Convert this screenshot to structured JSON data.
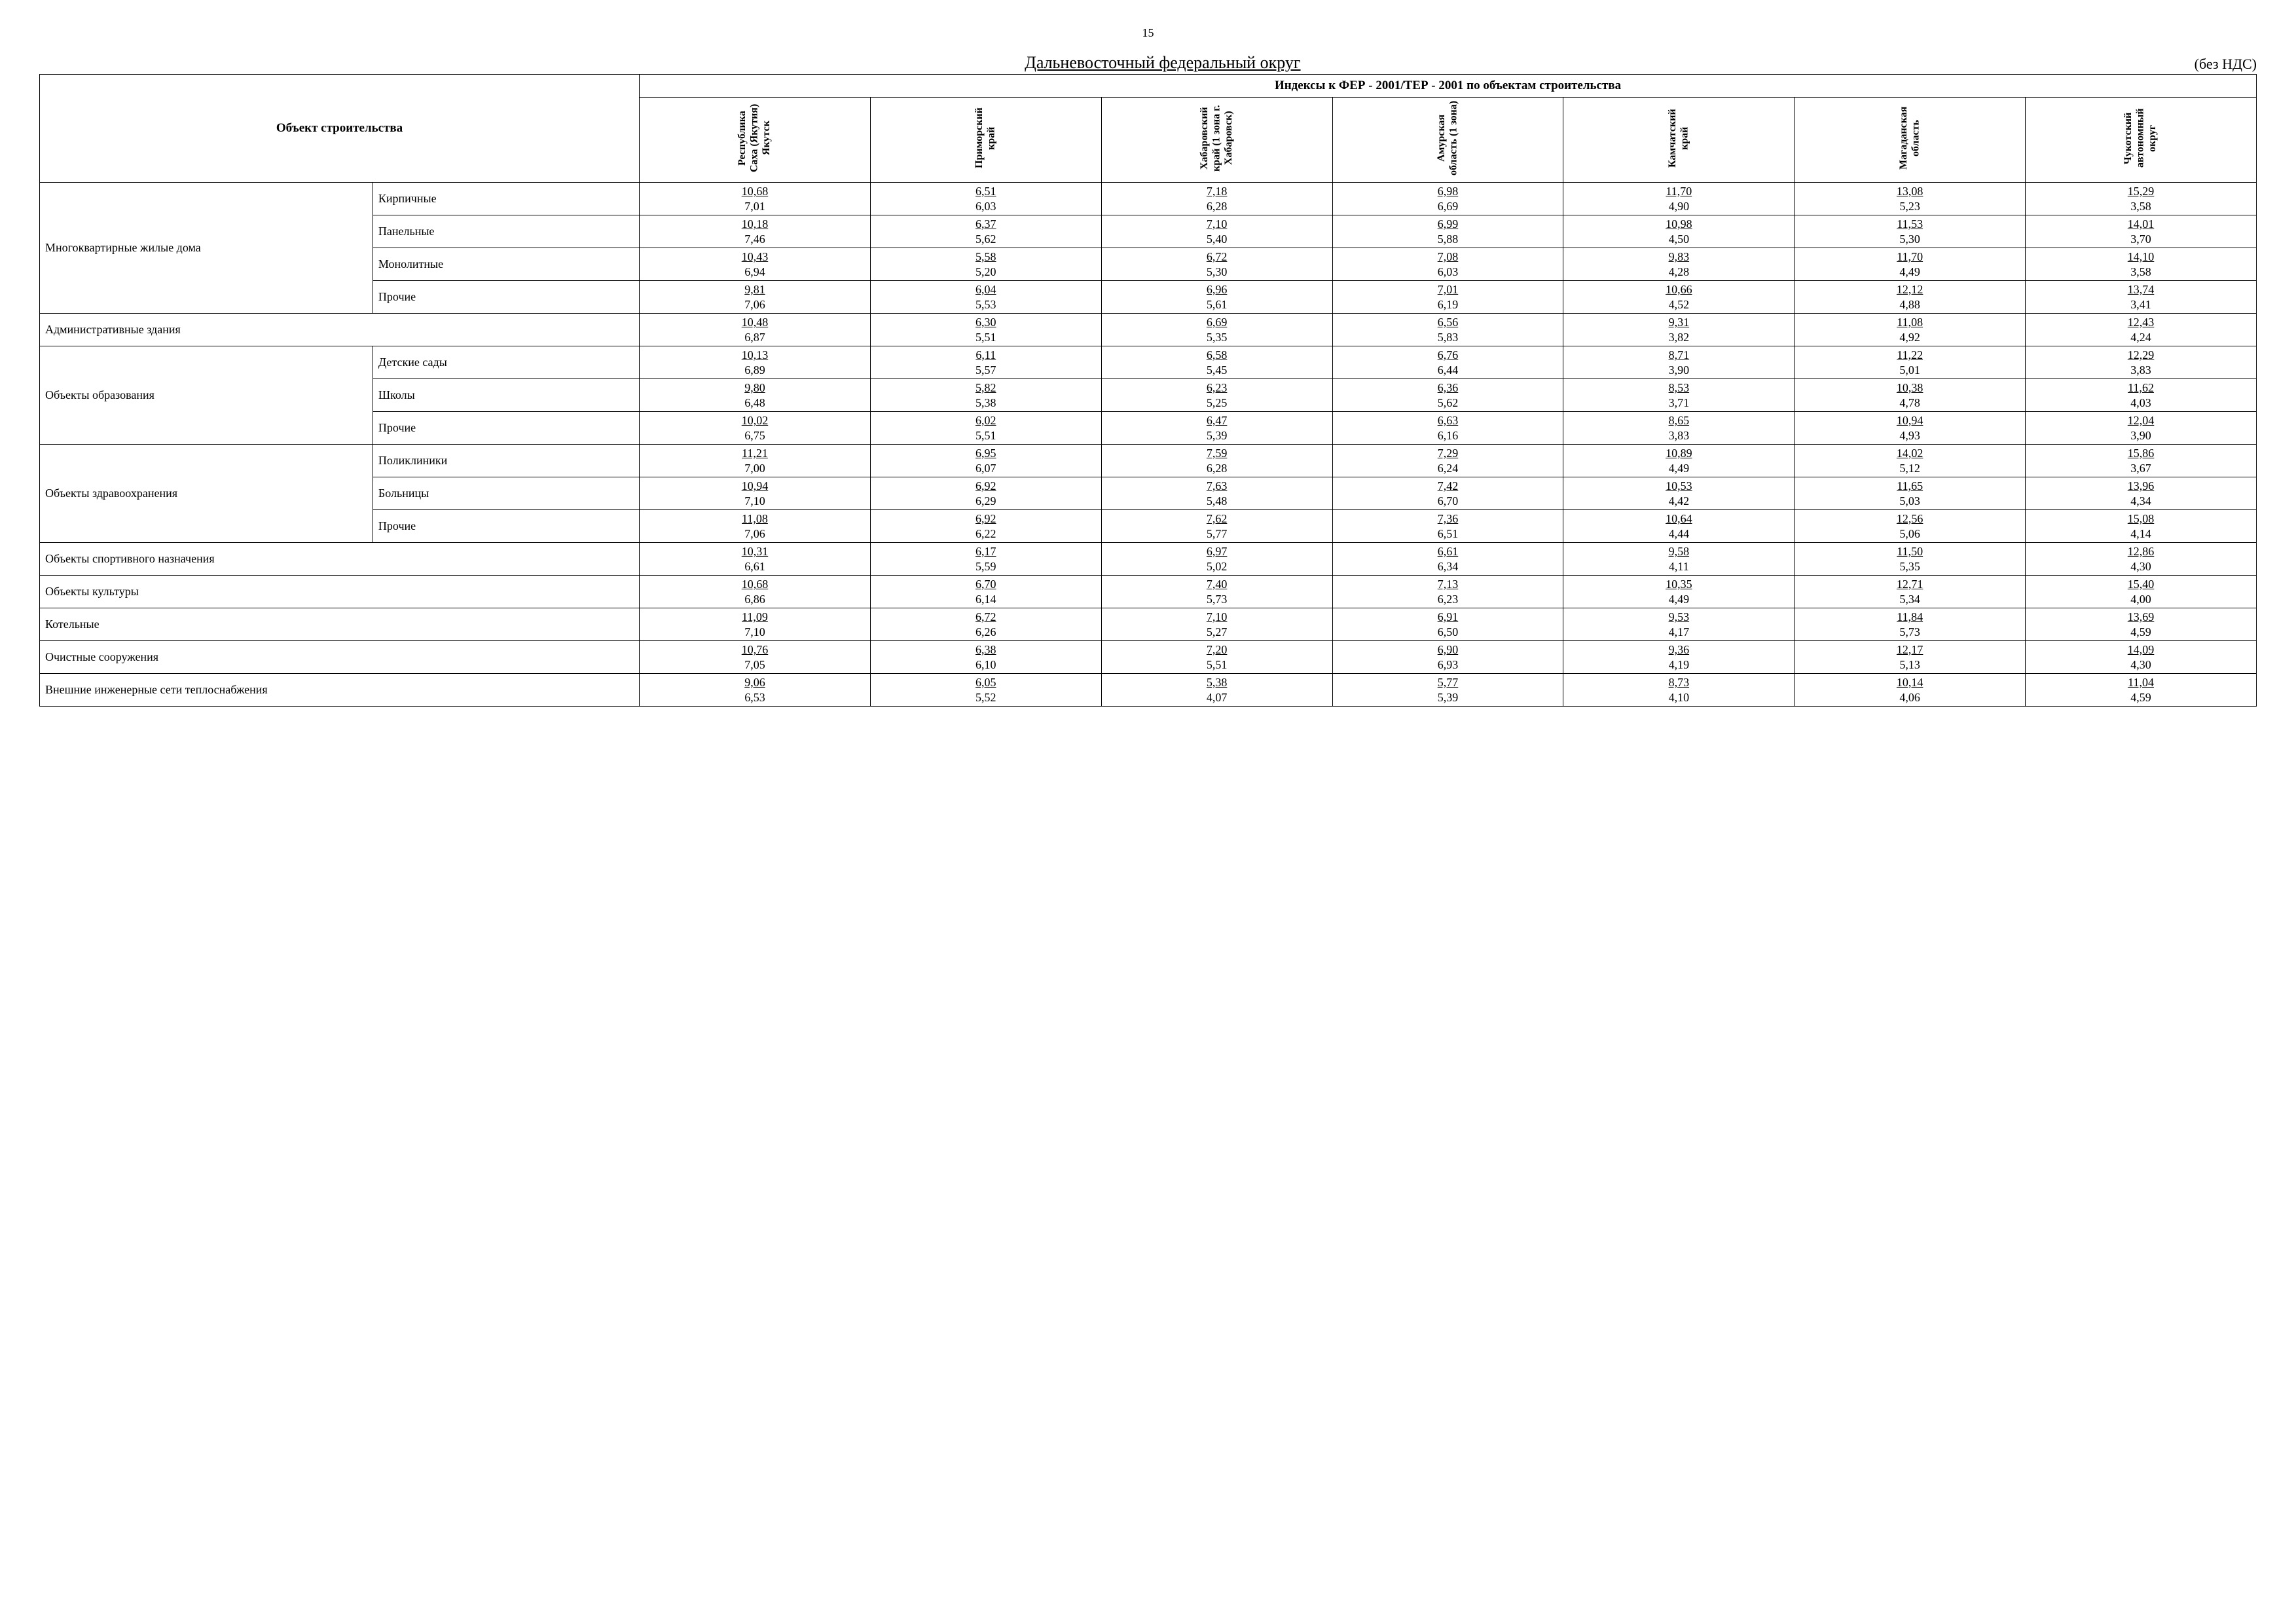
{
  "page_number": "15",
  "title": "Дальневосточный федеральный округ",
  "note": "(без НДС)",
  "header": {
    "object": "Объект строительства",
    "super": "Индексы к ФЕР - 2001/ТЕР - 2001 по объектам строительства",
    "regions": [
      "Республика Саха (Якутия) Якутск",
      "Приморский край",
      "Хабаровский край (1 зона г. Хабаровск)",
      "Амурская область (1 зона)",
      "Камчатский край",
      "Магаданская область",
      "Чукотский автономный округ"
    ]
  },
  "groups": [
    {
      "name": "Многоквартирные жилые дома",
      "rows": [
        {
          "label": "Кирпичные",
          "vals": [
            [
              "10,68",
              "7,01"
            ],
            [
              "6,51",
              "6,03"
            ],
            [
              "7,18",
              "6,28"
            ],
            [
              "6,98",
              "6,69"
            ],
            [
              "11,70",
              "4,90"
            ],
            [
              "13,08",
              "5,23"
            ],
            [
              "15,29",
              "3,58"
            ]
          ]
        },
        {
          "label": "Панельные",
          "vals": [
            [
              "10,18",
              "7,46"
            ],
            [
              "6,37",
              "5,62"
            ],
            [
              "7,10",
              "5,40"
            ],
            [
              "6,99",
              "5,88"
            ],
            [
              "10,98",
              "4,50"
            ],
            [
              "11,53",
              "5,30"
            ],
            [
              "14,01",
              "3,70"
            ]
          ]
        },
        {
          "label": "Монолитные",
          "vals": [
            [
              "10,43",
              "6,94"
            ],
            [
              "5,58",
              "5,20"
            ],
            [
              "6,72",
              "5,30"
            ],
            [
              "7,08",
              "6,03"
            ],
            [
              "9,83",
              "4,28"
            ],
            [
              "11,70",
              "4,49"
            ],
            [
              "14,10",
              "3,58"
            ]
          ]
        },
        {
          "label": "Прочие",
          "vals": [
            [
              "9,81",
              "7,06"
            ],
            [
              "6,04",
              "5,53"
            ],
            [
              "6,96",
              "5,61"
            ],
            [
              "7,01",
              "6,19"
            ],
            [
              "10,66",
              "4,52"
            ],
            [
              "12,12",
              "4,88"
            ],
            [
              "13,74",
              "3,41"
            ]
          ]
        }
      ]
    },
    {
      "name": "Административные здания",
      "rows": [
        {
          "label": "",
          "vals": [
            [
              "10,48",
              "6,87"
            ],
            [
              "6,30",
              "5,51"
            ],
            [
              "6,69",
              "5,35"
            ],
            [
              "6,56",
              "5,83"
            ],
            [
              "9,31",
              "3,82"
            ],
            [
              "11,08",
              "4,92"
            ],
            [
              "12,43",
              "4,24"
            ]
          ]
        }
      ]
    },
    {
      "name": "Объекты образования",
      "rows": [
        {
          "label": "Детские сады",
          "vals": [
            [
              "10,13",
              "6,89"
            ],
            [
              "6,11",
              "5,57"
            ],
            [
              "6,58",
              "5,45"
            ],
            [
              "6,76",
              "6,44"
            ],
            [
              "8,71",
              "3,90"
            ],
            [
              "11,22",
              "5,01"
            ],
            [
              "12,29",
              "3,83"
            ]
          ]
        },
        {
          "label": "Школы",
          "vals": [
            [
              "9,80",
              "6,48"
            ],
            [
              "5,82",
              "5,38"
            ],
            [
              "6,23",
              "5,25"
            ],
            [
              "6,36",
              "5,62"
            ],
            [
              "8,53",
              "3,71"
            ],
            [
              "10,38",
              "4,78"
            ],
            [
              "11,62",
              "4,03"
            ]
          ]
        },
        {
          "label": "Прочие",
          "vals": [
            [
              "10,02",
              "6,75"
            ],
            [
              "6,02",
              "5,51"
            ],
            [
              "6,47",
              "5,39"
            ],
            [
              "6,63",
              "6,16"
            ],
            [
              "8,65",
              "3,83"
            ],
            [
              "10,94",
              "4,93"
            ],
            [
              "12,04",
              "3,90"
            ]
          ]
        }
      ]
    },
    {
      "name": "Объекты здравоохранения",
      "rows": [
        {
          "label": "Поликлиники",
          "vals": [
            [
              "11,21",
              "7,00"
            ],
            [
              "6,95",
              "6,07"
            ],
            [
              "7,59",
              "6,28"
            ],
            [
              "7,29",
              "6,24"
            ],
            [
              "10,89",
              "4,49"
            ],
            [
              "14,02",
              "5,12"
            ],
            [
              "15,86",
              "3,67"
            ]
          ]
        },
        {
          "label": "Больницы",
          "vals": [
            [
              "10,94",
              "7,10"
            ],
            [
              "6,92",
              "6,29"
            ],
            [
              "7,63",
              "5,48"
            ],
            [
              "7,42",
              "6,70"
            ],
            [
              "10,53",
              "4,42"
            ],
            [
              "11,65",
              "5,03"
            ],
            [
              "13,96",
              "4,34"
            ]
          ]
        },
        {
          "label": "Прочие",
          "vals": [
            [
              "11,08",
              "7,06"
            ],
            [
              "6,92",
              "6,22"
            ],
            [
              "7,62",
              "5,77"
            ],
            [
              "7,36",
              "6,51"
            ],
            [
              "10,64",
              "4,44"
            ],
            [
              "12,56",
              "5,06"
            ],
            [
              "15,08",
              "4,14"
            ]
          ]
        }
      ]
    },
    {
      "name": "Объекты спортивного назначения",
      "rows": [
        {
          "label": "",
          "vals": [
            [
              "10,31",
              "6,61"
            ],
            [
              "6,17",
              "5,59"
            ],
            [
              "6,97",
              "5,02"
            ],
            [
              "6,61",
              "6,34"
            ],
            [
              "9,58",
              "4,11"
            ],
            [
              "11,50",
              "5,35"
            ],
            [
              "12,86",
              "4,30"
            ]
          ]
        }
      ]
    },
    {
      "name": "Объекты культуры",
      "rows": [
        {
          "label": "",
          "vals": [
            [
              "10,68",
              "6,86"
            ],
            [
              "6,70",
              "6,14"
            ],
            [
              "7,40",
              "5,73"
            ],
            [
              "7,13",
              "6,23"
            ],
            [
              "10,35",
              "4,49"
            ],
            [
              "12,71",
              "5,34"
            ],
            [
              "15,40",
              "4,00"
            ]
          ]
        }
      ]
    },
    {
      "name": "Котельные",
      "rows": [
        {
          "label": "",
          "vals": [
            [
              "11,09",
              "7,10"
            ],
            [
              "6,72",
              "6,26"
            ],
            [
              "7,10",
              "5,27"
            ],
            [
              "6,91",
              "6,50"
            ],
            [
              "9,53",
              "4,17"
            ],
            [
              "11,84",
              "5,73"
            ],
            [
              "13,69",
              "4,59"
            ]
          ]
        }
      ]
    },
    {
      "name": "Очистные сооружения",
      "rows": [
        {
          "label": "",
          "vals": [
            [
              "10,76",
              "7,05"
            ],
            [
              "6,38",
              "6,10"
            ],
            [
              "7,20",
              "5,51"
            ],
            [
              "6,90",
              "6,93"
            ],
            [
              "9,36",
              "4,19"
            ],
            [
              "12,17",
              "5,13"
            ],
            [
              "14,09",
              "4,30"
            ]
          ]
        }
      ]
    },
    {
      "name": "Внешние инженерные сети теплоснабжения",
      "rows": [
        {
          "label": "",
          "vals": [
            [
              "9,06",
              "6,53"
            ],
            [
              "6,05",
              "5,52"
            ],
            [
              "5,38",
              "4,07"
            ],
            [
              "5,77",
              "5,39"
            ],
            [
              "8,73",
              "4,10"
            ],
            [
              "10,14",
              "4,06"
            ],
            [
              "11,04",
              "4,59"
            ]
          ]
        }
      ]
    }
  ]
}
